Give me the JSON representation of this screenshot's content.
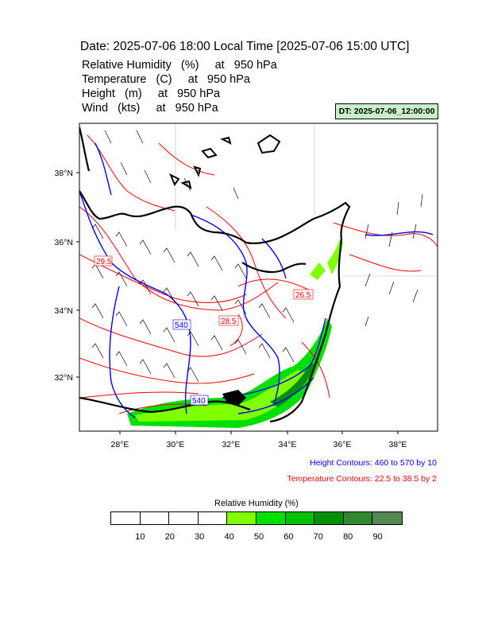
{
  "header": {
    "title": "Date: 2025-07-06  18:00 Local Time [2025-07-06  15:00 UTC]",
    "vars": [
      "Relative Humidity   (%)     at   950 hPa",
      "Temperature   (C)     at   950 hPa",
      "Height   (m)     at   950 hPa",
      "Wind   (kts)     at   950 hPa"
    ],
    "dt_badge": "DT: 2025-07-06_12:00:00"
  },
  "map": {
    "lat_labels": [
      "38°N",
      "36°N",
      "34°N",
      "32°N"
    ],
    "lon_labels": [
      "28°E",
      "30°E",
      "32°E",
      "34°E",
      "36°E",
      "38°E"
    ],
    "height_labels": [
      "540",
      "540"
    ],
    "temp_labels": [
      "29.5",
      "28.5",
      "26.5"
    ],
    "colors": {
      "height_contour": "#0000ff",
      "temp_contour": "#ff0000",
      "coast": "#000000",
      "wind_barb": "#000000"
    }
  },
  "legend": {
    "height_note": "Height Contours: 460 to 570 by 10",
    "temp_note": "Temperature Contours: 22.5 to 38.5 by 2"
  },
  "colorbar": {
    "title": "Relative Humidity  (%)",
    "labels": [
      "10",
      "20",
      "30",
      "40",
      "50",
      "60",
      "70",
      "80",
      "90"
    ],
    "colors": [
      "#ffffff",
      "#ffffff",
      "#ffffff",
      "#ffffff",
      "#80ff00",
      "#00e000",
      "#00c000",
      "#009000",
      "#308830",
      "#508850"
    ]
  }
}
